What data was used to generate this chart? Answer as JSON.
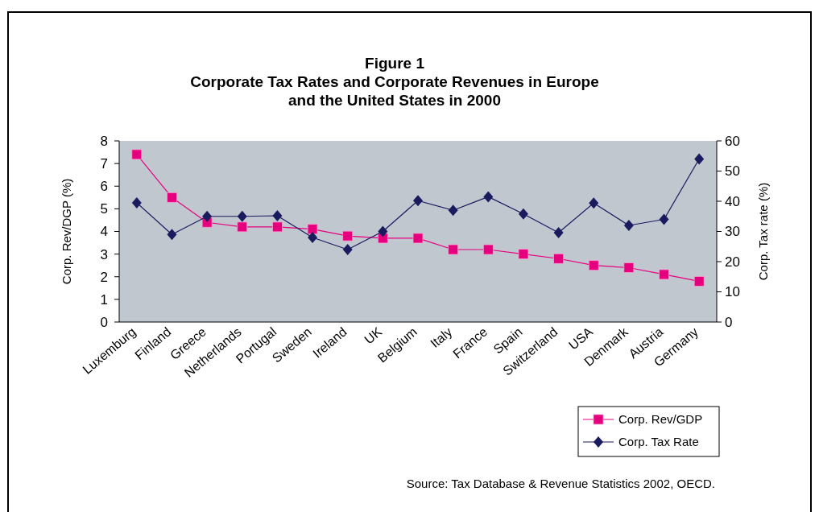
{
  "chart_data": {
    "type": "line",
    "title": "Figure 1\nCorporate Tax Rates and Corporate Revenues in Europe\nand the United States in 2000",
    "ylabel": "Corp. Rev/DGP (%)",
    "y2label": "Corp. Tax rate (%)",
    "categories": [
      "Luxemburg",
      "Finland",
      "Greece",
      "Netherlands",
      "Portugal",
      "Sweden",
      "Ireland",
      "UK",
      "Belgium",
      "Italy",
      "France",
      "Spain",
      "Switzerland",
      "USA",
      "Denmark",
      "Austria",
      "Germany"
    ],
    "series": [
      {
        "name": "Corp. Rev/GDP",
        "color": "#e6007e",
        "marker": "square",
        "values": [
          7.4,
          5.5,
          4.4,
          4.2,
          4.2,
          4.1,
          3.8,
          3.7,
          3.7,
          3.2,
          3.2,
          3.0,
          2.8,
          2.5,
          2.4,
          2.1,
          1.8
        ]
      },
      {
        "name": "Corp. Tax Rate",
        "color": "#1a1a5e",
        "marker": "diamond",
        "axis": "y2",
        "values": [
          39.5,
          29,
          35,
          35,
          35.2,
          28,
          24,
          30,
          40.2,
          37,
          41.5,
          35.8,
          29.6,
          39.4,
          32,
          34,
          54
        ]
      }
    ],
    "ylim": [
      0,
      8
    ],
    "yticks": [
      0,
      1,
      2,
      3,
      4,
      5,
      6,
      7,
      8
    ],
    "y2lim": [
      0,
      60
    ],
    "y2ticks": [
      0,
      10,
      20,
      30,
      40,
      50,
      60
    ],
    "grid": false,
    "legend": "bottom right",
    "annotations": [
      "Source: Tax Database & Revenue Statistics 2002, OECD."
    ]
  }
}
